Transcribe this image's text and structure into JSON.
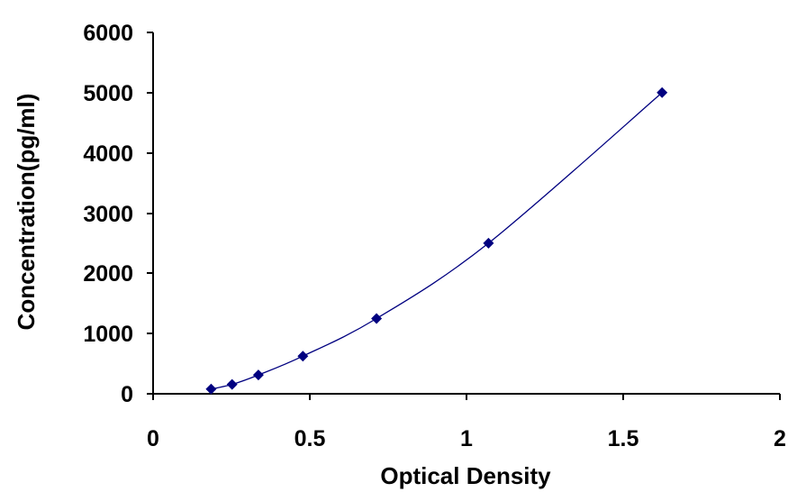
{
  "chart_data": {
    "type": "scatter",
    "xlabel": "Optical Density",
    "ylabel": "Concentration(pg/ml)",
    "xlim": [
      0,
      2
    ],
    "ylim": [
      0,
      6000
    ],
    "x_ticks": [
      0,
      0.5,
      1,
      1.5,
      2
    ],
    "x_tick_labels": [
      "0",
      "0.5",
      "1",
      "1.5",
      "2"
    ],
    "y_ticks": [
      0,
      1000,
      2000,
      3000,
      4000,
      5000,
      6000
    ],
    "y_tick_labels": [
      "0",
      "1000",
      "2000",
      "3000",
      "4000",
      "5000",
      "6000"
    ],
    "grid": false,
    "legend": "none",
    "series": [
      {
        "marker": "diamond",
        "color": "#000080",
        "line": "smooth",
        "x": [
          0.185,
          0.252,
          0.336,
          0.478,
          0.713,
          1.07,
          1.624
        ],
        "y": [
          78,
          156,
          312,
          625,
          1250,
          2500,
          5000
        ]
      }
    ]
  }
}
